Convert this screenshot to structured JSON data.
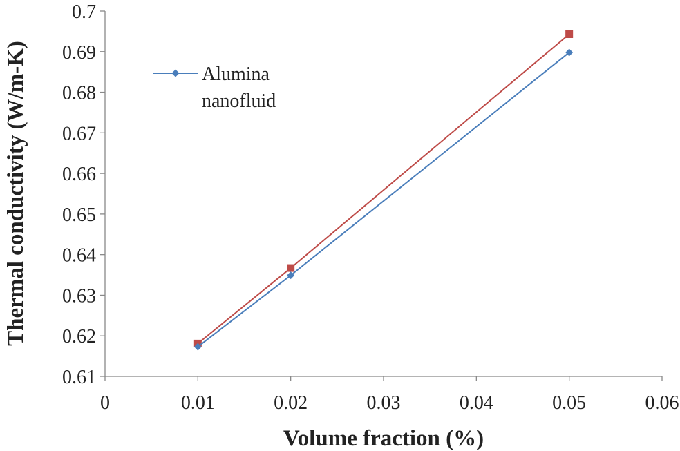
{
  "chart_data": {
    "type": "line",
    "title": "",
    "xlabel": "Volume fraction (%)",
    "ylabel": "Thermal conductivity (W/m-K)",
    "xlim": [
      0,
      0.06
    ],
    "ylim": [
      0.61,
      0.7
    ],
    "x_ticks": [
      "0",
      "0.01",
      "0.02",
      "0.03",
      "0.04",
      "0.05",
      "0.06"
    ],
    "y_ticks": [
      "0.61",
      "0.62",
      "0.63",
      "0.64",
      "0.65",
      "0.66",
      "0.67",
      "0.68",
      "0.69",
      "0.7"
    ],
    "grid": false,
    "legend_position": "top-left",
    "series": [
      {
        "name": "Alumina nanofluid",
        "legend_lines": [
          "Alumina",
          "nanofluid"
        ],
        "show_in_legend": true,
        "color": "#4a7ebb",
        "marker": "diamond",
        "x": [
          0.01,
          0.02,
          0.05
        ],
        "y": [
          0.6173,
          0.6349,
          0.6898
        ]
      },
      {
        "name": "",
        "show_in_legend": false,
        "color": "#be4b48",
        "marker": "square",
        "x": [
          0.01,
          0.02,
          0.05
        ],
        "y": [
          0.6181,
          0.6367,
          0.6943
        ]
      }
    ]
  }
}
